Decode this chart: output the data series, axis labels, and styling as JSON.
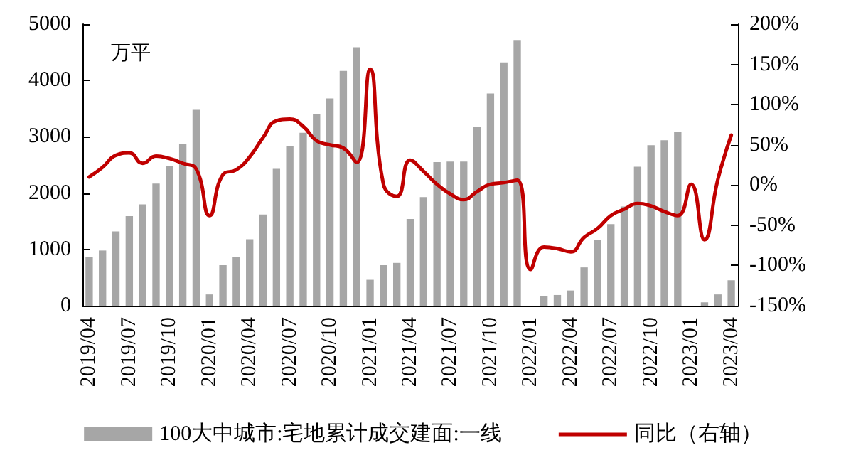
{
  "chart_data": {
    "type": "bar",
    "ylabel": "万平",
    "categories": [
      "2019/04",
      null,
      null,
      "2019/07",
      null,
      null,
      "2019/10",
      null,
      null,
      "2020/01",
      null,
      null,
      "2020/04",
      null,
      null,
      "2020/07",
      null,
      null,
      "2020/10",
      null,
      null,
      "2021/01",
      null,
      null,
      "2021/04",
      null,
      null,
      "2021/07",
      null,
      null,
      "2021/10",
      null,
      null,
      "2022/01",
      null,
      null,
      "2022/04",
      null,
      null,
      "2022/07",
      null,
      null,
      "2022/10",
      null,
      null,
      "2023/01",
      null,
      null,
      "2023/04"
    ],
    "series": [
      {
        "name": "100大中城市:宅地累计成交建面:一线",
        "color": "#a6a6a6",
        "values": [
          870,
          980,
          1320,
          1590,
          1800,
          2170,
          2480,
          2870,
          3480,
          200,
          720,
          860,
          1180,
          1620,
          2430,
          2830,
          3070,
          3400,
          3680,
          4170,
          4590,
          460,
          720,
          760,
          1540,
          1930,
          2550,
          2560,
          2560,
          3180,
          3770,
          4320,
          4720,
          null,
          170,
          190,
          270,
          680,
          1170,
          1450,
          1760,
          2470,
          2850,
          2940,
          3080,
          null,
          60,
          200,
          450
        ]
      },
      {
        "name": "同比（右轴）",
        "type": "line",
        "axis": "y2",
        "color": "#c00000",
        "values": [
          10,
          22,
          37,
          40,
          27,
          36,
          33,
          27,
          20,
          -38,
          13,
          19,
          35,
          59,
          80,
          82,
          73,
          55,
          50,
          46,
          28,
          144,
          1,
          -14,
          31,
          17,
          1,
          -11,
          -18,
          -8,
          1,
          3,
          6,
          -105,
          -77,
          -79,
          -83,
          -65,
          -54,
          -38,
          -30,
          -23,
          -26,
          -33,
          -38,
          1,
          -68,
          7,
          62
        ]
      }
    ],
    "ylim": [
      0,
      5000
    ],
    "yticks": [
      0,
      1000,
      2000,
      3000,
      4000,
      5000
    ],
    "y2lim": [
      -150,
      200
    ],
    "y2ticks": [
      {
        "value": -150,
        "label": "-150%"
      },
      {
        "value": -100,
        "label": "-100%"
      },
      {
        "value": -50,
        "label": "-50%"
      },
      {
        "value": 0,
        "label": "0%"
      },
      {
        "value": 50,
        "label": "50%"
      },
      {
        "value": 100,
        "label": "100%"
      },
      {
        "value": 150,
        "label": "150%"
      },
      {
        "value": 200,
        "label": "200%"
      }
    ],
    "grid": false,
    "legend": "bottom",
    "marker": "none",
    "line_style": "solid"
  }
}
